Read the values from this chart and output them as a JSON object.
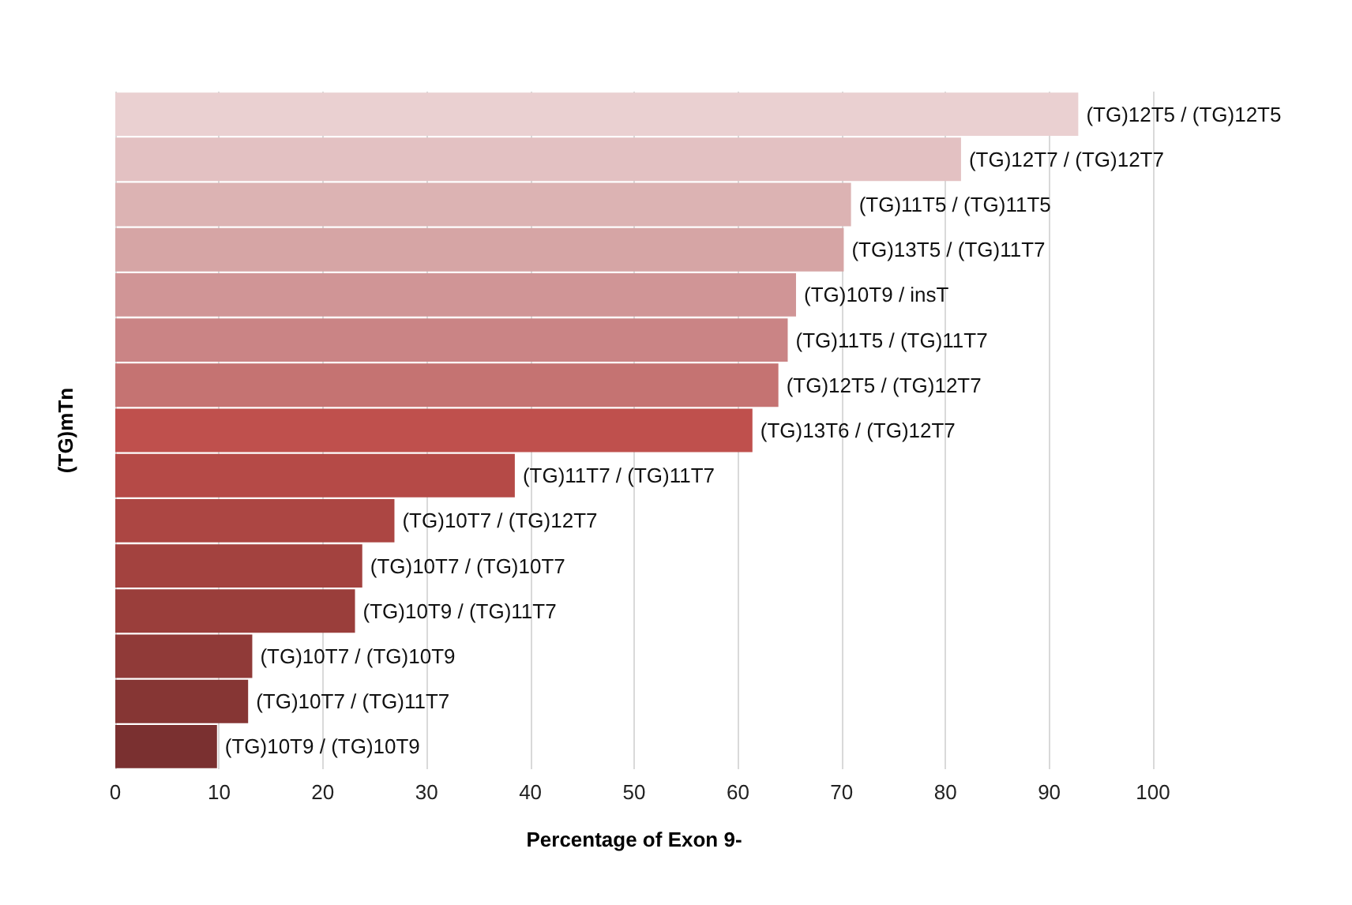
{
  "chart_data": {
    "type": "bar",
    "orientation": "horizontal",
    "xlabel": "Percentage of Exon 9-",
    "ylabel": "(TG)mTn",
    "categories": [
      "(TG)12T5 / (TG)12T5",
      "(TG)12T7 / (TG)12T7",
      "(TG)11T5 / (TG)11T5",
      "(TG)13T5 / (TG)11T7",
      "(TG)10T9 / insT",
      "(TG)11T5 / (TG)11T7",
      "(TG)12T5 / (TG)12T7",
      "(TG)13T6 / (TG)12T7",
      "(TG)11T7 / (TG)11T7",
      "(TG)10T7 / (TG)12T7",
      "(TG)10T7 / (TG)10T7",
      "(TG)10T9 / (TG)11T7",
      "(TG)10T7 / (TG)10T9",
      "(TG)10T7 / (TG)11T7",
      "(TG)10T9 / (TG)10T9"
    ],
    "values": [
      92.8,
      81.5,
      70.9,
      70.2,
      65.6,
      64.8,
      63.9,
      61.4,
      38.5,
      26.9,
      23.8,
      23.1,
      13.2,
      12.8,
      9.8
    ],
    "colors": [
      "#ead0d1",
      "#e3c1c2",
      "#dcb3b3",
      "#d6a5a5",
      "#d09596",
      "#ca8485",
      "#c57372",
      "#bf504d",
      "#b54a47",
      "#ac4643",
      "#a3423f",
      "#9a3e3b",
      "#903a38",
      "#863634",
      "#7a3030"
    ],
    "xlim": [
      0,
      100
    ],
    "xticks": [
      0,
      10,
      20,
      30,
      40,
      50,
      60,
      70,
      80,
      90,
      100
    ],
    "grid": "x",
    "tick_labels": "x"
  }
}
